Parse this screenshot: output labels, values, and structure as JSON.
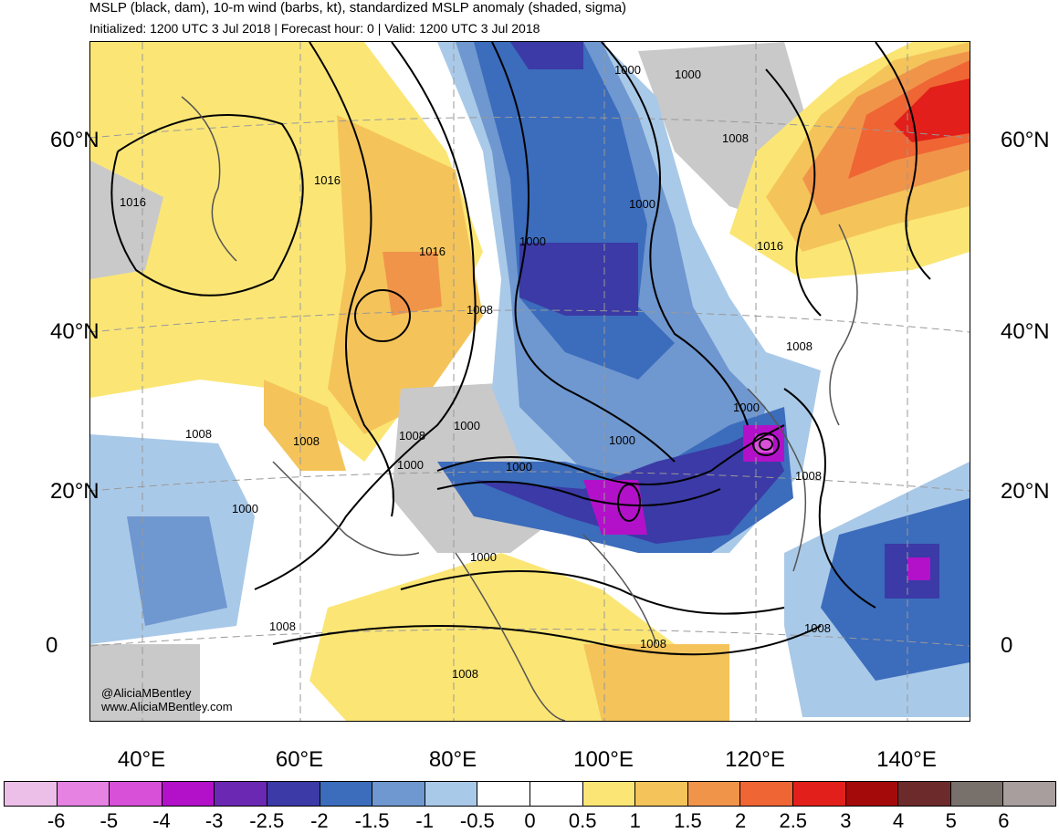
{
  "header": {
    "title": "MSLP (black, dam), 10-m wind (barbs, kt), standardized MSLP anomaly (shaded, sigma)",
    "subtitle": "Initialized: 1200 UTC 3 Jul 2018 | Forecast hour: 0 | Valid: 1200 UTC 3 Jul 2018"
  },
  "axes": {
    "lat_left": [
      "60°N",
      "40°N",
      "20°N",
      "0"
    ],
    "lat_right": [
      "60°N",
      "40°N",
      "20°N",
      "0"
    ],
    "lon": [
      "40°E",
      "60°E",
      "80°E",
      "100°E",
      "120°E",
      "140°E"
    ]
  },
  "contour_labels": [
    "1016",
    "1016",
    "1016",
    "1016",
    "1008",
    "1008",
    "1008",
    "1008",
    "1008",
    "1008",
    "1008",
    "1008",
    "1008",
    "1000",
    "1000",
    "1000",
    "1000",
    "1000",
    "1000",
    "1000",
    "1000",
    "1000",
    "1000",
    "1000",
    "1008",
    "1008"
  ],
  "credit": {
    "handle": "@AliciaMBentley",
    "site": "www.AliciaMBentley.com"
  },
  "colorbar": {
    "colors": [
      "#ecbfe9",
      "#e582e2",
      "#d850d8",
      "#b311c9",
      "#6a28b3",
      "#3b3aa6",
      "#3c6cbc",
      "#6f97d0",
      "#a9c9e8",
      "#ffffff",
      "#ffffff",
      "#fbe675",
      "#f4c45a",
      "#f0944a",
      "#ef6534",
      "#e21f1a",
      "#a40a0a",
      "#6c2b2a",
      "#78706b",
      "#a79e9d"
    ],
    "labels": [
      "-6",
      "-5",
      "-4",
      "-3",
      "-2.5",
      "-2",
      "-1.5",
      "-1",
      "-0.5",
      "0",
      "0.5",
      "1",
      "1.5",
      "2",
      "2.5",
      "3",
      "4",
      "5",
      "6"
    ]
  }
}
